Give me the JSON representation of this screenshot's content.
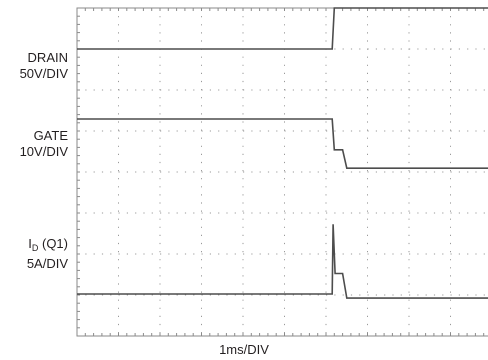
{
  "chart_data": {
    "type": "line",
    "xlabel": "1ms/DIV",
    "grid": true,
    "x_divisions": 10,
    "y_divisions": 8,
    "x_unit": "ms",
    "series": [
      {
        "name": "DRAIN",
        "scale": "50V/DIV",
        "x": [
          0,
          6.15,
          6.2,
          10
        ],
        "y": [
          100,
          100,
          200,
          200
        ]
      },
      {
        "name": "GATE",
        "scale": "10V/DIV",
        "x": [
          0,
          6.15,
          6.2,
          6.4,
          6.5,
          10
        ],
        "y": [
          10,
          10,
          2.5,
          2.5,
          -2,
          -2
        ]
      },
      {
        "name": "I_D (Q1)",
        "scale": "5A/DIV",
        "x": [
          0,
          6.15,
          6.17,
          6.22,
          6.4,
          6.5,
          10
        ],
        "y": [
          0,
          0,
          8.5,
          2.5,
          2.5,
          -0.5,
          -0.5
        ]
      }
    ]
  },
  "labels": {
    "drain_name": "DRAIN",
    "drain_scale": "50V/DIV",
    "gate_name": "GATE",
    "gate_scale": "10V/DIV",
    "id_main": "I",
    "id_sub": "D",
    "id_rest": " (Q1)",
    "id_scale": "5A/DIV"
  }
}
